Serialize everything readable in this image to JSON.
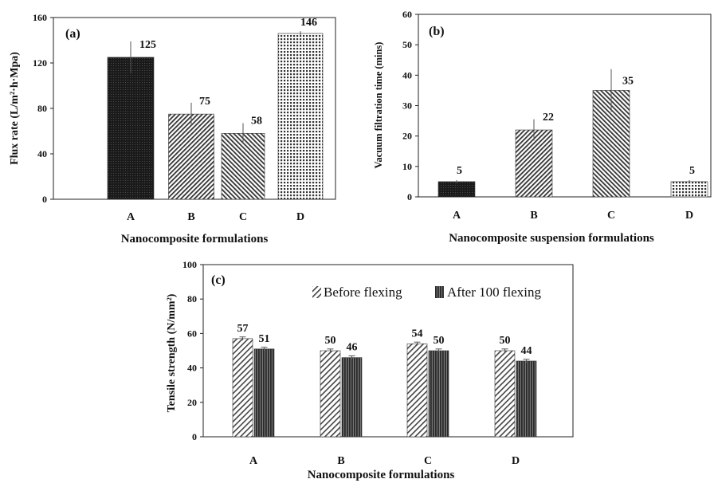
{
  "chart_data": [
    {
      "type": "bar",
      "title": "(a)",
      "xlabel": "Nanocomposite formulations",
      "ylabel": "Flux rate (L/m²·h·Mpa)",
      "ylim": [
        0,
        160
      ],
      "yticks": [
        0,
        40,
        80,
        120,
        160
      ],
      "categories": [
        "A",
        "B",
        "C",
        "D"
      ],
      "values": [
        125,
        75,
        58,
        146
      ],
      "error": [
        14,
        10,
        9,
        2
      ],
      "data_labels": [
        "125",
        "75",
        "58",
        "146"
      ],
      "grid": false
    },
    {
      "type": "bar",
      "title": "(b)",
      "xlabel": "Nanocomposite suspension formulations",
      "ylabel": "Vacuum filtration time (mins)",
      "ylim": [
        0,
        60
      ],
      "yticks": [
        0,
        10,
        20,
        30,
        40,
        50,
        60
      ],
      "categories": [
        "A",
        "B",
        "C",
        "D"
      ],
      "values": [
        5,
        22,
        35,
        5
      ],
      "error": [
        0.5,
        3.5,
        7,
        0.5
      ],
      "data_labels": [
        "5",
        "22",
        "35",
        "5"
      ],
      "grid": false
    },
    {
      "type": "bar",
      "title": "(c)",
      "xlabel": "Nanocomposite formulations",
      "ylabel": "Tensile strength (N/mm²)",
      "ylim": [
        0,
        100
      ],
      "yticks": [
        0,
        20,
        40,
        60,
        80,
        100
      ],
      "categories": [
        "A",
        "B",
        "C",
        "D"
      ],
      "series": [
        {
          "name": "Before flexing",
          "values": [
            57,
            50,
            54,
            50
          ],
          "error": [
            1,
            1,
            1,
            1
          ],
          "data_labels": [
            "57",
            "50",
            "54",
            "50"
          ]
        },
        {
          "name": "After 100 flexing",
          "values": [
            51,
            46,
            50,
            44
          ],
          "error": [
            1,
            1,
            1,
            1
          ],
          "data_labels": [
            "51",
            "46",
            "50",
            "44"
          ]
        }
      ],
      "legend_position": "top",
      "grid": false
    }
  ]
}
